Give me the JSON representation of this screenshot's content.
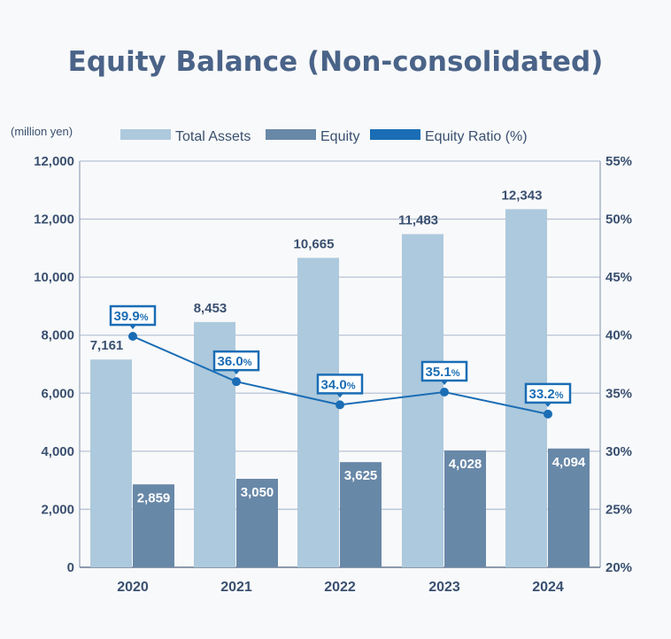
{
  "chart_data": {
    "type": "bar+line",
    "title": "Equity Balance (Non-consolidated)",
    "ylabel": "(million yen)",
    "categories": [
      "2020",
      "2021",
      "2022",
      "2023",
      "2024"
    ],
    "series": [
      {
        "name": "Total Assets",
        "type": "bar",
        "axis": "left",
        "color": "#adc9dd",
        "values": [
          7161,
          8453,
          10665,
          11483,
          12343
        ],
        "labels": [
          "7,161",
          "8,453",
          "10,665",
          "11,483",
          "12,343"
        ]
      },
      {
        "name": "Equity",
        "type": "bar",
        "axis": "left",
        "color": "#6888a8",
        "values": [
          2859,
          3050,
          3625,
          4028,
          4094
        ],
        "labels": [
          "2,859",
          "3,050",
          "3,625",
          "4,028",
          "4,094"
        ]
      },
      {
        "name": "Equity Ratio (%)",
        "type": "line",
        "axis": "right",
        "color": "#1a6db5",
        "values": [
          39.9,
          36.0,
          34.0,
          35.1,
          33.2
        ],
        "labels": [
          "39.9",
          "36.0",
          "34.0",
          "35.1",
          "33.2"
        ]
      }
    ],
    "y_left": {
      "range": [
        0,
        12000
      ],
      "ticks": [
        "0",
        "2,000",
        "4,000",
        "6,000",
        "8,000",
        "10,000",
        "12,000",
        "12,000"
      ]
    },
    "y_right": {
      "range": [
        20,
        55
      ],
      "ticks": [
        "20%",
        "25%",
        "30%",
        "35%",
        "40%",
        "45%",
        "50%",
        "55%"
      ]
    },
    "grid": true,
    "legend": "top"
  }
}
